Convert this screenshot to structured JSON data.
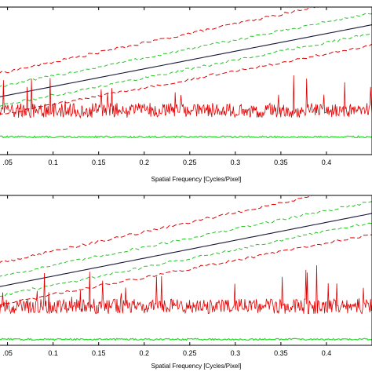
{
  "colors": {
    "signal": "#e00000",
    "outer_band": "#e00000",
    "inner_band": "#22c422",
    "trend": "#1a1a3a",
    "baseline": "#22dd22",
    "axes": "#000000"
  },
  "chart_data": [
    {
      "type": "line",
      "title": "",
      "xlabel": "Spatial Frequency [Cycles/Pixel]",
      "ylabel": "",
      "xlim": [
        0.04,
        0.45
      ],
      "ylim": [
        0,
        10
      ],
      "grid": false,
      "legend": "none",
      "xticks": [
        0.05,
        0.1,
        0.15,
        0.2,
        0.25,
        0.3,
        0.35,
        0.4
      ],
      "xtick_labels": [
        ".05",
        "0.1",
        "0.15",
        "0.2",
        "0.25",
        "0.3",
        "0.35",
        "0.4"
      ],
      "series": [
        {
          "style": "solid-trend",
          "x": [
            0.04,
            0.45
          ],
          "y": [
            3.9,
            8.8
          ]
        },
        {
          "style": "dashed-green-upper",
          "x": [
            0.04,
            0.45
          ],
          "y": [
            4.6,
            9.6
          ]
        },
        {
          "style": "dashed-green-lower",
          "x": [
            0.04,
            0.45
          ],
          "y": [
            3.3,
            8.2
          ]
        },
        {
          "style": "dashed-red-upper",
          "x": [
            0.04,
            0.45
          ],
          "y": [
            5.5,
            10.8
          ]
        },
        {
          "style": "dashed-red-lower",
          "x": [
            0.04,
            0.45
          ],
          "y": [
            2.7,
            7.4
          ]
        },
        {
          "style": "noisy-signal",
          "x": [
            0.04,
            0.45
          ],
          "y": [
            3.0,
            3.0
          ],
          "spread": 0.5
        },
        {
          "style": "green-baseline",
          "x": [
            0.04,
            0.45
          ],
          "y": [
            1.2,
            1.2
          ]
        }
      ]
    },
    {
      "type": "line",
      "title": "",
      "xlabel": "Spatial Frequency [Cycles/Pixel]",
      "ylabel": "",
      "xlim": [
        0.04,
        0.45
      ],
      "ylim": [
        0,
        10
      ],
      "grid": false,
      "legend": "none",
      "xticks": [
        0.05,
        0.1,
        0.15,
        0.2,
        0.25,
        0.3,
        0.35,
        0.4
      ],
      "xtick_labels": [
        ".05",
        "0.1",
        "0.15",
        "0.2",
        "0.25",
        "0.3",
        "0.35",
        "0.4"
      ],
      "series": [
        {
          "style": "solid-trend",
          "x": [
            0.04,
            0.45
          ],
          "y": [
            3.9,
            8.8
          ]
        },
        {
          "style": "dashed-green-upper",
          "x": [
            0.04,
            0.45
          ],
          "y": [
            4.6,
            9.6
          ]
        },
        {
          "style": "dashed-green-lower",
          "x": [
            0.04,
            0.45
          ],
          "y": [
            3.3,
            8.2
          ]
        },
        {
          "style": "dashed-red-upper",
          "x": [
            0.04,
            0.45
          ],
          "y": [
            5.5,
            10.8
          ]
        },
        {
          "style": "dashed-red-lower",
          "x": [
            0.04,
            0.45
          ],
          "y": [
            2.7,
            7.4
          ]
        },
        {
          "style": "noisy-signal",
          "x": [
            0.04,
            0.45
          ],
          "y": [
            2.6,
            2.6
          ],
          "spread": 0.5
        },
        {
          "style": "green-baseline",
          "x": [
            0.04,
            0.45
          ],
          "y": [
            0.4,
            0.4
          ]
        }
      ]
    }
  ]
}
